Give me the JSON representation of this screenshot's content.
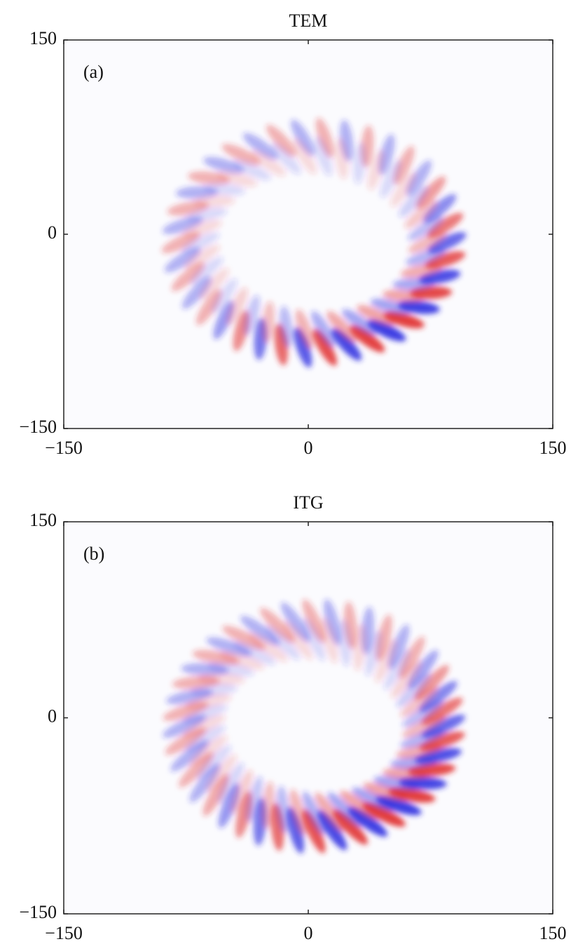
{
  "chart_data": [
    {
      "type": "heatmap",
      "title": "TEM",
      "annotation": "(a)",
      "xlim": [
        -150,
        150
      ],
      "ylim": [
        -150,
        150
      ],
      "xticks": [
        {
          "value": -150,
          "label": "−150"
        },
        0,
        150
      ],
      "yticks": [
        {
          "value": -150,
          "label": "−150"
        },
        0,
        150
      ]
    },
    {
      "type": "heatmap",
      "title": "ITG",
      "annotation": "(b)",
      "xlim": [
        -150,
        150
      ],
      "ylim": [
        -150,
        150
      ],
      "xticks": [
        {
          "value": -150,
          "label": "−150"
        },
        0,
        150
      ],
      "yticks": [
        {
          "value": -150,
          "label": "−150"
        },
        0,
        150
      ]
    }
  ]
}
